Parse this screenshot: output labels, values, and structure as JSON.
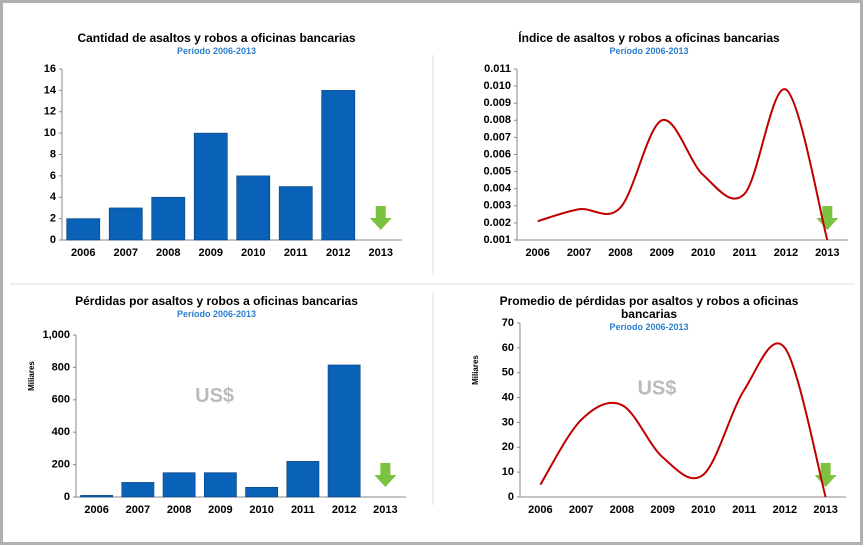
{
  "chart_data": [
    {
      "type": "bar",
      "title": "Cantidad de asaltos y robos a oficinas bancarias",
      "subtitle": "Período  2006-2013",
      "categories": [
        "2006",
        "2007",
        "2008",
        "2009",
        "2010",
        "2011",
        "2012",
        "2013"
      ],
      "values": [
        2,
        3,
        4,
        10,
        6,
        5,
        14,
        null
      ],
      "color": "#0a62b8",
      "ylim": [
        0,
        16
      ],
      "yticks": [
        0,
        2,
        4,
        6,
        8,
        10,
        12,
        14,
        16
      ]
    },
    {
      "type": "line",
      "title": "Índice de asaltos y robos a oficinas bancarias",
      "subtitle": "Período  2006-2013",
      "categories": [
        "2006",
        "2007",
        "2008",
        "2009",
        "2010",
        "2011",
        "2012",
        "2013"
      ],
      "values": [
        0.0021,
        0.0028,
        0.0029,
        0.008,
        0.0048,
        0.0037,
        0.0098,
        0.001
      ],
      "color": "#c00000",
      "ylim": [
        0.001,
        0.011
      ],
      "yticks": [
        0.001,
        0.002,
        0.003,
        0.004,
        0.005,
        0.006,
        0.007,
        0.008,
        0.009,
        {
          "value": 0.01,
          "label": "0.010"
        },
        0.011
      ]
    },
    {
      "type": "bar",
      "title": "Pérdidas por asaltos y robos a oficinas bancarias",
      "subtitle": "Período  2006-2013",
      "y_label": "Miliares",
      "annotation": "US$",
      "categories": [
        "2006",
        "2007",
        "2008",
        "2009",
        "2010",
        "2011",
        "2012",
        "2013"
      ],
      "values": [
        10,
        90,
        150,
        150,
        60,
        220,
        815,
        null
      ],
      "color": "#0a62b8",
      "ylim": [
        0,
        1000
      ],
      "yticks": [
        0,
        200,
        400,
        600,
        800,
        {
          "value": 1000,
          "label": "1,000"
        }
      ]
    },
    {
      "type": "line",
      "title": "Promedio de pérdidas por asaltos y robos a oficinas bancarias",
      "subtitle": "Período  2006-2013",
      "y_label": "Miliares",
      "annotation": "US$",
      "categories": [
        "2006",
        "2007",
        "2008",
        "2009",
        "2010",
        "2011",
        "2012",
        "2013"
      ],
      "values": [
        5,
        31,
        37,
        16,
        9,
        43,
        60,
        0
      ],
      "color": "#c00000",
      "ylim": [
        0,
        70
      ],
      "yticks": [
        0,
        10,
        20,
        30,
        40,
        50,
        60,
        70
      ]
    }
  ]
}
